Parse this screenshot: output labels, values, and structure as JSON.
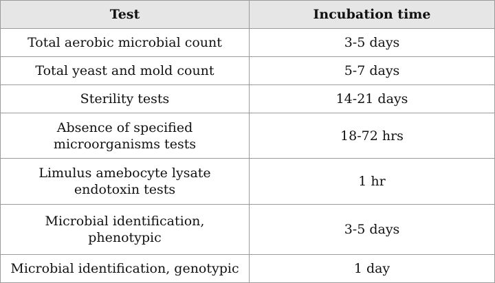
{
  "table": {
    "headers": [
      "Test",
      "Incubation time"
    ],
    "rows": [
      {
        "test": [
          "Total aerobic microbial count"
        ],
        "time": "3-5 days"
      },
      {
        "test": [
          "Total yeast and mold count"
        ],
        "time": "5-7 days"
      },
      {
        "test": [
          "Sterility tests"
        ],
        "time": "14-21 days"
      },
      {
        "test": [
          "Absence of specified",
          "microorganisms tests"
        ],
        "time": "18-72 hrs"
      },
      {
        "test": [
          "Limulus amebocyte lysate",
          "endotoxin tests"
        ],
        "time": "1 hr"
      },
      {
        "test": [
          "Microbial identification,",
          "phenotypic"
        ],
        "time": "3-5 days"
      },
      {
        "test": [
          "Microbial identification, genotypic"
        ],
        "time": "1 day"
      }
    ]
  }
}
